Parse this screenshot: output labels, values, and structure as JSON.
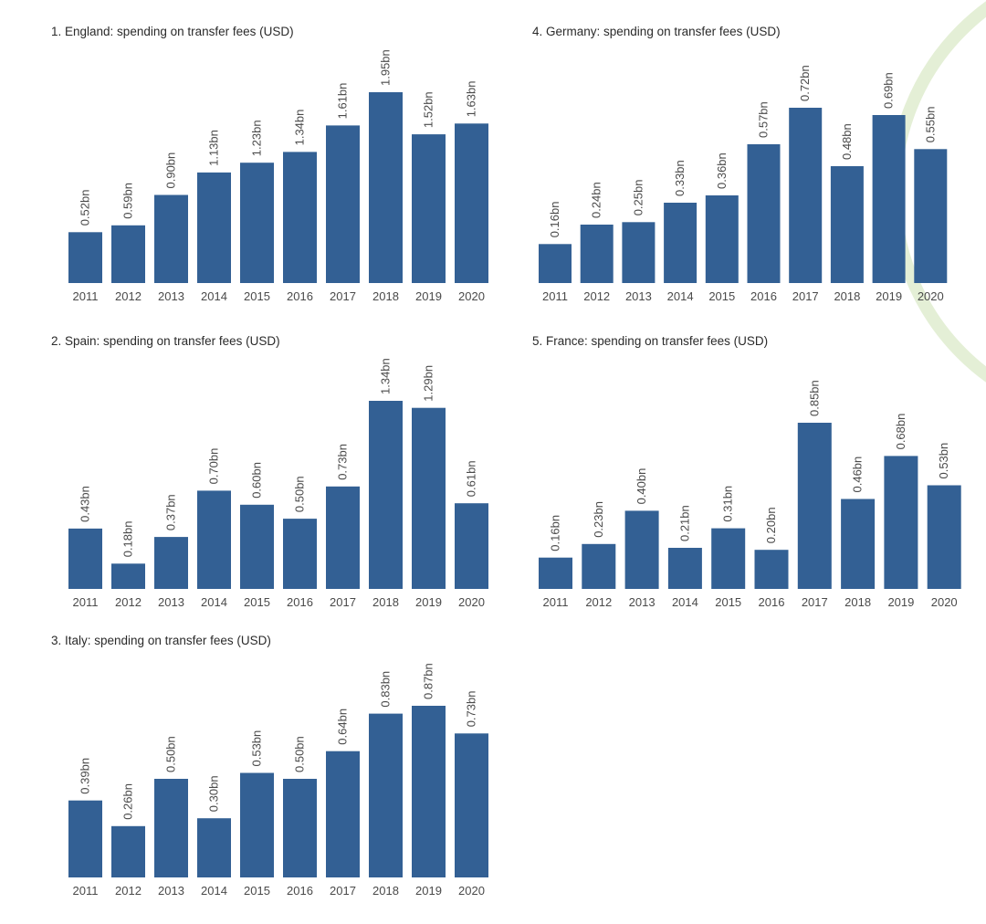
{
  "colors": {
    "bar": "#336094",
    "decor_arc": "#e4efd6",
    "text": "#4a4a4a",
    "title": "#2a2a2a"
  },
  "chart_data": [
    {
      "type": "bar",
      "title": "1. England: spending on transfer fees (USD)",
      "categories": [
        "2011",
        "2012",
        "2013",
        "2014",
        "2015",
        "2016",
        "2017",
        "2018",
        "2019",
        "2020"
      ],
      "values": [
        0.52,
        0.59,
        0.9,
        1.13,
        1.23,
        1.34,
        1.61,
        1.95,
        1.52,
        1.63
      ],
      "labels": [
        "0.52bn",
        "0.59bn",
        "0.90bn",
        "1.13bn",
        "1.23bn",
        "1.34bn",
        "1.61bn",
        "1.95bn",
        "1.52bn",
        "1.63bn"
      ],
      "unit": "bn USD",
      "ylim": [
        0,
        1.95
      ]
    },
    {
      "type": "bar",
      "title": "4. Germany: spending on transfer fees (USD)",
      "categories": [
        "2011",
        "2012",
        "2013",
        "2014",
        "2015",
        "2016",
        "2017",
        "2018",
        "2019",
        "2020"
      ],
      "values": [
        0.16,
        0.24,
        0.25,
        0.33,
        0.36,
        0.57,
        0.72,
        0.48,
        0.69,
        0.55
      ],
      "labels": [
        "0.16bn",
        "0.24bn",
        "0.25bn",
        "0.33bn",
        "0.36bn",
        "0.57bn",
        "0.72bn",
        "0.48bn",
        "0.69bn",
        "0.55bn"
      ],
      "unit": "bn USD",
      "ylim": [
        0,
        0.72
      ]
    },
    {
      "type": "bar",
      "title": "2. Spain: spending on transfer fees (USD)",
      "categories": [
        "2011",
        "2012",
        "2013",
        "2014",
        "2015",
        "2016",
        "2017",
        "2018",
        "2019",
        "2020"
      ],
      "values": [
        0.43,
        0.18,
        0.37,
        0.7,
        0.6,
        0.5,
        0.73,
        1.34,
        1.29,
        0.61
      ],
      "labels": [
        "0.43bn",
        "0.18bn",
        "0.37bn",
        "0.70bn",
        "0.60bn",
        "0.50bn",
        "0.73bn",
        "1.34bn",
        "1.29bn",
        "0.61bn"
      ],
      "unit": "bn USD",
      "ylim": [
        0,
        1.34
      ]
    },
    {
      "type": "bar",
      "title": "5. France: spending on transfer fees (USD)",
      "categories": [
        "2011",
        "2012",
        "2013",
        "2014",
        "2015",
        "2016",
        "2017",
        "2018",
        "2019",
        "2020"
      ],
      "values": [
        0.16,
        0.23,
        0.4,
        0.21,
        0.31,
        0.2,
        0.85,
        0.46,
        0.68,
        0.53
      ],
      "labels": [
        "0.16bn",
        "0.23bn",
        "0.40bn",
        "0.21bn",
        "0.31bn",
        "0.20bn",
        "0.85bn",
        "0.46bn",
        "0.68bn",
        "0.53bn"
      ],
      "unit": "bn USD",
      "ylim": [
        0,
        0.85
      ]
    },
    {
      "type": "bar",
      "title": "3. Italy: spending on transfer fees (USD)",
      "categories": [
        "2011",
        "2012",
        "2013",
        "2014",
        "2015",
        "2016",
        "2017",
        "2018",
        "2019",
        "2020"
      ],
      "values": [
        0.39,
        0.26,
        0.5,
        0.3,
        0.53,
        0.5,
        0.64,
        0.83,
        0.87,
        0.73
      ],
      "labels": [
        "0.39bn",
        "0.26bn",
        "0.50bn",
        "0.30bn",
        "0.53bn",
        "0.50bn",
        "0.64bn",
        "0.83bn",
        "0.87bn",
        "0.73bn"
      ],
      "unit": "bn USD",
      "ylim": [
        0,
        0.87
      ]
    }
  ]
}
